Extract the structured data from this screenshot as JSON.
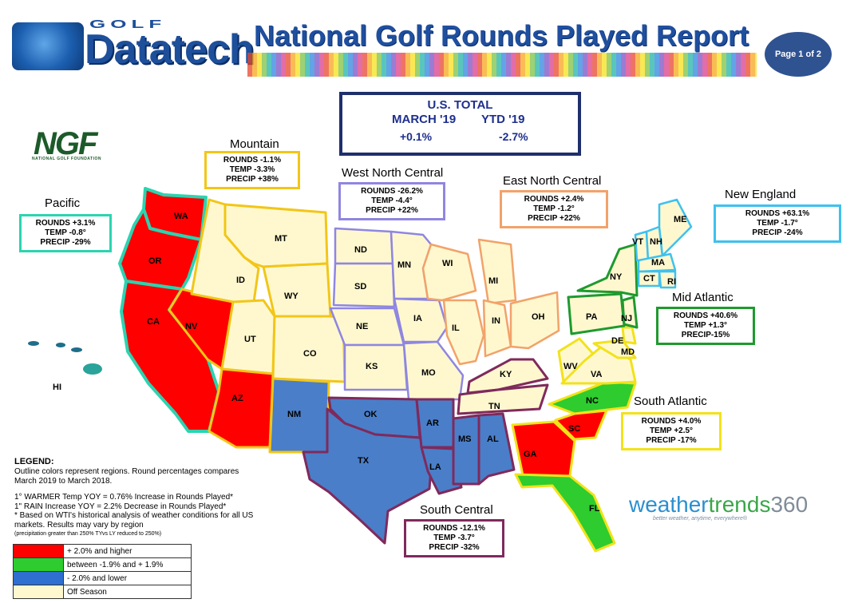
{
  "header": {
    "logo_top": "GOLF",
    "logo_main": "Datatech",
    "title": "National Golf Rounds Played Report",
    "page_badge": "Page 1 of 2"
  },
  "us_total": {
    "title": "U.S. TOTAL",
    "month_label": "MARCH '19",
    "ytd_label": "YTD '19",
    "month_value": "+0.1%",
    "ytd_value": "-2.7%"
  },
  "ngf": {
    "name": "NGF",
    "tagline": "NATIONAL GOLF FOUNDATION"
  },
  "regions": {
    "pacific": {
      "name": "Pacific",
      "rounds": "ROUNDS  +3.1%",
      "temp": "TEMP  -0.8°",
      "precip": "PRECIP  -29%",
      "color": "#2bd4b0"
    },
    "mountain": {
      "name": "Mountain",
      "rounds": "ROUNDS  -1.1%",
      "temp": "TEMP  -3.3%",
      "precip": "PRECIP +38%",
      "color": "#f2c618"
    },
    "wnc": {
      "name": "West North Central",
      "rounds": "ROUNDS  -26.2%",
      "temp": "TEMP  -4.4°",
      "precip": "PRECIP +22%",
      "color": "#8f86e0"
    },
    "enc": {
      "name": "East North Central",
      "rounds": "ROUNDS  +2.4%",
      "temp": "TEMP  -1.2°",
      "precip": "PRECIP +22%",
      "color": "#f2a26a"
    },
    "ne": {
      "name": "New England",
      "rounds": "ROUNDS  +63.1%",
      "temp": "TEMP  -1.7°",
      "precip": "PRECIP  -24%",
      "color": "#3ec1ee"
    },
    "ma": {
      "name": "Mid Atlantic",
      "rounds": "ROUNDS  +40.6%",
      "temp": "TEMP  +1.3°",
      "precip": "PRECIP-15%",
      "color": "#1f9a2e"
    },
    "sa": {
      "name": "South Atlantic",
      "rounds": "ROUNDS  +4.0%",
      "temp": "TEMP  +2.5°",
      "precip": "PRECIP  -17%",
      "color": "#f2e21a"
    },
    "sc": {
      "name": "South Central",
      "rounds": "ROUNDS  -12.1%",
      "temp": "TEMP  -3.7°",
      "precip": "PRECIP  -32%",
      "color": "#7f2a5c"
    }
  },
  "states": {
    "WA": "WA",
    "OR": "OR",
    "CA": "CA",
    "NV": "NV",
    "ID": "ID",
    "MT": "MT",
    "WY": "WY",
    "UT": "UT",
    "CO": "CO",
    "AZ": "AZ",
    "NM": "NM",
    "ND": "ND",
    "SD": "SD",
    "NE": "NE",
    "KS": "KS",
    "MN": "MN",
    "IA": "IA",
    "MO": "MO",
    "WI": "WI",
    "MI": "MI",
    "IL": "IL",
    "IN": "IN",
    "OH": "OH",
    "KY": "KY",
    "TN": "TN",
    "OK": "OK",
    "TX": "TX",
    "AR": "AR",
    "LA": "LA",
    "MS": "MS",
    "AL": "AL",
    "GA": "GA",
    "SC": "SC",
    "NC": "NC",
    "FL": "FL",
    "VA": "VA",
    "WV": "WV",
    "MD": "MD",
    "DE": "DE",
    "PA": "PA",
    "NJ": "NJ",
    "NY": "NY",
    "VT": "VT",
    "NH": "NH",
    "ME": "ME",
    "MA": "MA",
    "CT": "CT",
    "RI": "RI",
    "HI": "HI"
  },
  "fill_colors": {
    "high": "#ff0000",
    "mid": "#2ecc2e",
    "low": "#4a7ec8",
    "off": "#fff8cf"
  },
  "legend": {
    "title": "LEGEND:",
    "line1": "Outline colors represent regions. Round percentages compares",
    "line2": "March 2019 to March 2018.",
    "line3": "1° WARMER Temp YOY  = 0.76% Increase in Rounds Played*",
    "line4": "1\" RAIN Increase YOY = 2.2% Decrease in Rounds Played*",
    "line5": "* Based on WTI's historical analysis of weather conditions for all US",
    "line6": "markets. Results may vary by region",
    "line7": "(precipitation greater than 250% TYvs LY reduced to 250%)",
    "items": [
      {
        "label": "+ 2.0% and higher",
        "color": "#ff0000"
      },
      {
        "label": "between -1.9% and + 1.9%",
        "color": "#2ecc2e"
      },
      {
        "label": "- 2.0% and lower",
        "color": "#2e6fd1"
      },
      {
        "label": "Off Season",
        "color": "#fff8cf"
      }
    ]
  },
  "weathertrends": {
    "name_part1": "weather",
    "name_part2": "trends",
    "name_part3": "360",
    "tagline": "better weather, anytime, everywhere®"
  }
}
